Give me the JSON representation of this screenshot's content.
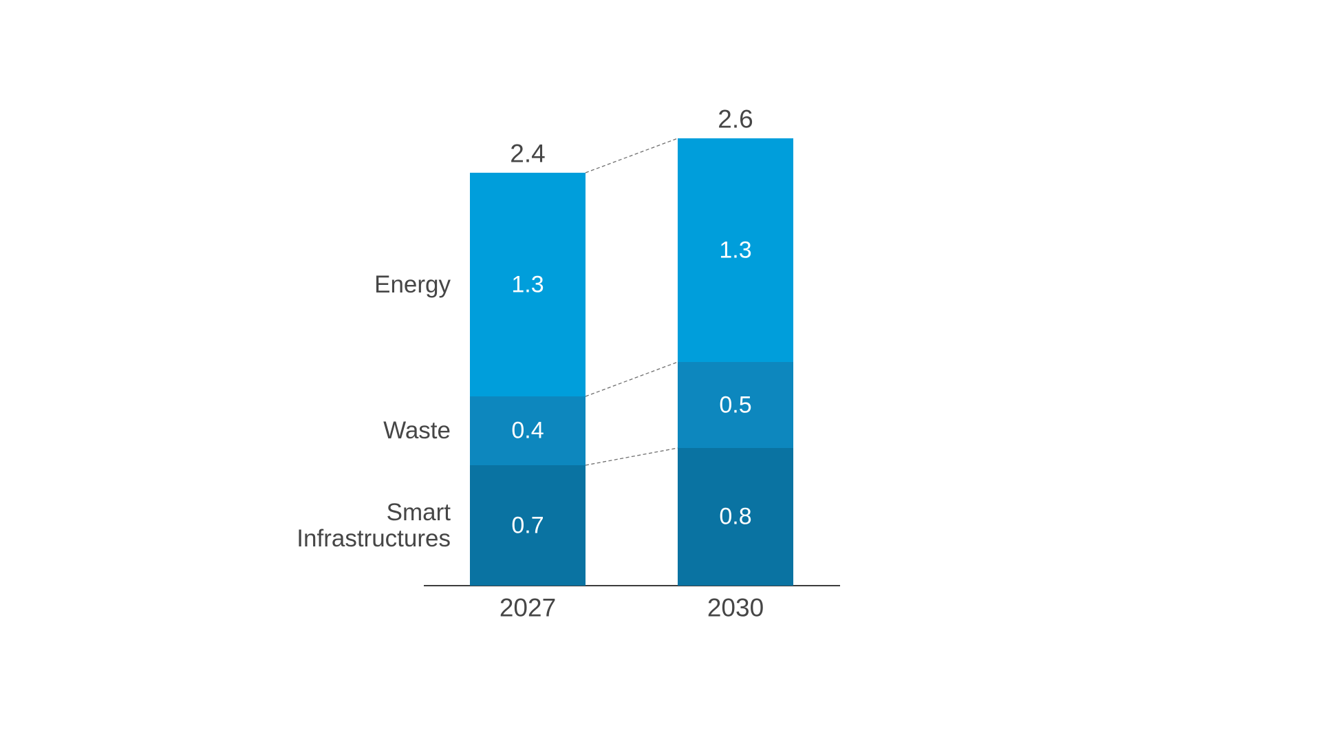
{
  "chart_data": {
    "type": "bar",
    "subtype": "stacked-column-comparison",
    "title": "",
    "categories": [
      "2027",
      "2030"
    ],
    "totals": [
      2.4,
      2.6
    ],
    "series": [
      {
        "name": "Energy",
        "label_lines": [
          "Energy"
        ],
        "values": [
          1.3,
          1.3
        ],
        "color": "#009EDB"
      },
      {
        "name": "Waste",
        "label_lines": [
          "Waste"
        ],
        "values": [
          0.4,
          0.5
        ],
        "color": "#0D87BE"
      },
      {
        "name": "Smart Infrastructures",
        "label_lines": [
          "Smart",
          "Infrastructures"
        ],
        "values": [
          0.7,
          0.8
        ],
        "color": "#0A73A2"
      }
    ],
    "ylim": [
      0,
      2.6
    ],
    "grid": false,
    "legend_position": "left-of-first-bar",
    "annotations": "dashed connector lines link matching segment boundaries between the two columns; stack totals shown above each column",
    "colors": {
      "label_text": "#464646",
      "value_text": "#ffffff",
      "axis": "#3c3c3c",
      "connector": "#6e6e6e",
      "background": "#ffffff"
    }
  }
}
